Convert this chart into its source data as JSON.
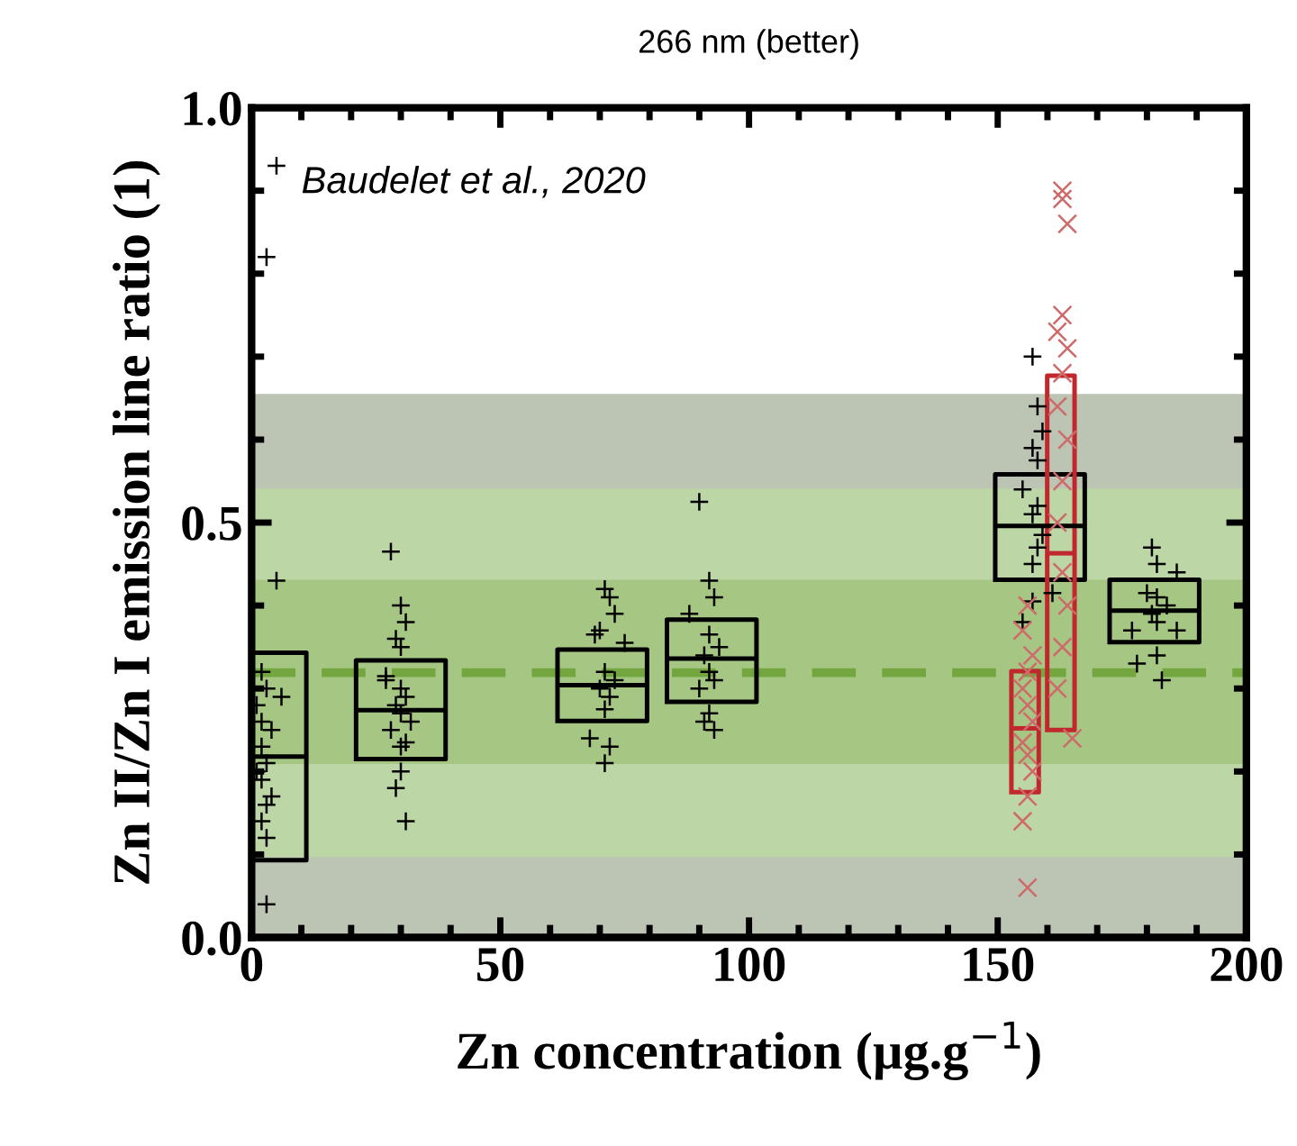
{
  "chart_data": {
    "type": "scatter",
    "title": "266 nm (better)",
    "xlabel": "Zn concentration (µg.g$^{−1}$)",
    "ylabel": "Zn II/Zn I emission line ratio (1)",
    "annotations": [
      "Baudelet et al., 2020"
    ],
    "xlim": [
      0,
      200
    ],
    "xticks": [
      0,
      50,
      100,
      150,
      200
    ],
    "ylim": [
      0,
      1.0
    ],
    "yticks": [
      {
        "value": 0,
        "label": "0.0"
      },
      0.5,
      {
        "value": 1.0,
        "label": "1.0"
      }
    ],
    "grid": false,
    "legend": false,
    "bands": [
      {
        "axis": "y",
        "from": 0,
        "to": 0.655,
        "color": "#bcc4b4"
      },
      {
        "axis": "y",
        "from": 0.097,
        "to": 0.541,
        "color": "#bcd6a6"
      },
      {
        "axis": "y",
        "from": 0.209,
        "to": 0.431,
        "color": "#a6c784"
      }
    ],
    "ref_lines": [
      {
        "axis": "y",
        "value": 0.319,
        "color": "#73a63f",
        "line_style": "dashed"
      }
    ],
    "series": [
      {
        "type": "scatter",
        "color": "#000000",
        "marker": "plus",
        "x": [
          5,
          3,
          5,
          3,
          2,
          3,
          1,
          2,
          4,
          2,
          3,
          1,
          2,
          4,
          3,
          2,
          6,
          3,
          28,
          30,
          31,
          29,
          30,
          27,
          27,
          30,
          31,
          29,
          30,
          32,
          28,
          30,
          31,
          30,
          29,
          31,
          71,
          72,
          73,
          70,
          69,
          75,
          71,
          73,
          70,
          72,
          71,
          68,
          72,
          71,
          90,
          92,
          93,
          88,
          92,
          94,
          91,
          92,
          93,
          90,
          92,
          91,
          93,
          157,
          158,
          159,
          157,
          158,
          155,
          158,
          157,
          159,
          158,
          157,
          161,
          157,
          155,
          181,
          182,
          186,
          180,
          182,
          184,
          181,
          182,
          186,
          177,
          182,
          178,
          183
        ],
        "values": [
          0.93,
          0.82,
          0.43,
          0.04,
          0.32,
          0.3,
          0.28,
          0.26,
          0.25,
          0.23,
          0.21,
          0.2,
          0.19,
          0.17,
          0.16,
          0.14,
          0.29,
          0.12,
          0.465,
          0.4,
          0.38,
          0.36,
          0.35,
          0.315,
          0.31,
          0.3,
          0.29,
          0.28,
          0.27,
          0.26,
          0.25,
          0.23,
          0.235,
          0.2,
          0.18,
          0.14,
          0.42,
          0.41,
          0.39,
          0.37,
          0.365,
          0.355,
          0.32,
          0.31,
          0.3,
          0.29,
          0.275,
          0.24,
          0.23,
          0.21,
          0.525,
          0.43,
          0.41,
          0.39,
          0.365,
          0.35,
          0.34,
          0.32,
          0.31,
          0.3,
          0.27,
          0.26,
          0.25,
          0.7,
          0.64,
          0.61,
          0.59,
          0.575,
          0.54,
          0.52,
          0.51,
          0.485,
          0.47,
          0.45,
          0.415,
          0.405,
          0.38,
          0.47,
          0.45,
          0.44,
          0.415,
          0.41,
          0.4,
          0.39,
          0.38,
          0.37,
          0.37,
          0.34,
          0.33,
          0.31
        ]
      },
      {
        "type": "scatter",
        "color": "#cf6a6a",
        "marker": "cross",
        "x": [
          156,
          155,
          157,
          156,
          155,
          156,
          157,
          155,
          156,
          157,
          156,
          155,
          156,
          163,
          163,
          164,
          163,
          162,
          164,
          163,
          162,
          164,
          163,
          162,
          163,
          164,
          163,
          162,
          165
        ],
        "values": [
          0.4,
          0.37,
          0.34,
          0.32,
          0.3,
          0.28,
          0.26,
          0.235,
          0.22,
          0.2,
          0.17,
          0.14,
          0.06,
          0.9,
          0.89,
          0.86,
          0.75,
          0.73,
          0.71,
          0.68,
          0.64,
          0.6,
          0.55,
          0.5,
          0.44,
          0.4,
          0.35,
          0.3,
          0.24
        ]
      },
      {
        "type": "box",
        "color": "#000000",
        "x": [
          2,
          30,
          70.5,
          92.5,
          158.5,
          181.5
        ],
        "boxes": [
          {
            "low": 0.093,
            "q1": 0.093,
            "median": 0.218,
            "q3": 0.343,
            "high": 0.343
          },
          {
            "low": 0.215,
            "q1": 0.215,
            "median": 0.274,
            "q3": 0.334,
            "high": 0.334
          },
          {
            "low": 0.261,
            "q1": 0.261,
            "median": 0.304,
            "q3": 0.347,
            "high": 0.347
          },
          {
            "low": 0.284,
            "q1": 0.284,
            "median": 0.336,
            "q3": 0.383,
            "high": 0.383
          },
          {
            "low": 0.431,
            "q1": 0.431,
            "median": 0.496,
            "q3": 0.558,
            "high": 0.558
          },
          {
            "low": 0.356,
            "q1": 0.356,
            "median": 0.394,
            "q3": 0.431,
            "high": 0.431
          }
        ]
      },
      {
        "type": "box",
        "color": "#c0282d",
        "x": [
          155.5,
          162.7
        ],
        "boxes": [
          {
            "low": 0.175,
            "q1": 0.175,
            "median": 0.252,
            "q3": 0.321,
            "high": 0.321
          },
          {
            "low": 0.25,
            "q1": 0.25,
            "median": 0.463,
            "q3": 0.677,
            "high": 0.677
          }
        ]
      }
    ]
  }
}
